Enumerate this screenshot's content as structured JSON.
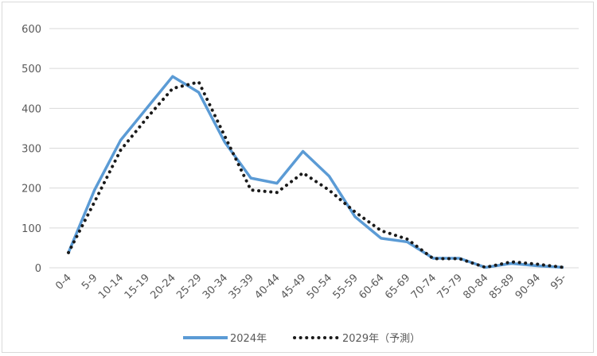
{
  "chart_data": {
    "type": "line",
    "title": "",
    "xlabel": "",
    "ylabel": "",
    "ylim": [
      0,
      600
    ],
    "yticks": [
      0,
      100,
      200,
      300,
      400,
      500,
      600
    ],
    "grid": true,
    "legend_position": "bottom",
    "categories": [
      "0-4",
      "5-9",
      "10-14",
      "15-19",
      "20-24",
      "25-29",
      "30-34",
      "35-39",
      "40-44",
      "45-49",
      "50-54",
      "55-59",
      "60-64",
      "65-69",
      "70-74",
      "75-79",
      "80-84",
      "85-89",
      "90-94",
      "95-"
    ],
    "series": [
      {
        "name": "2024年",
        "style": "solid",
        "color": "#5b9bd5",
        "values": [
          38,
          195,
          320,
          400,
          480,
          440,
          315,
          225,
          212,
          292,
          230,
          128,
          74,
          65,
          24,
          24,
          1,
          11,
          5,
          1
        ]
      },
      {
        "name": "2029年（予測）",
        "style": "dotted",
        "color": "#1a1a1a",
        "values": [
          38,
          165,
          295,
          375,
          450,
          466,
          330,
          195,
          189,
          238,
          195,
          140,
          93,
          72,
          23,
          23,
          1,
          15,
          9,
          1
        ]
      }
    ]
  }
}
